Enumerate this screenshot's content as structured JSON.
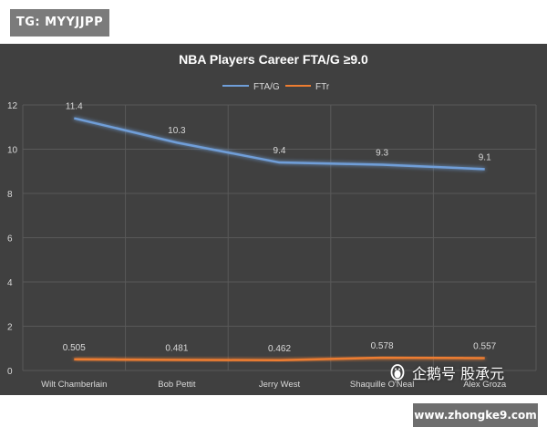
{
  "header_badge": "TG: MYYJJPP",
  "watermark_text": "企鹅号 股承元",
  "watermark_icon": "penguin-icon",
  "site_label": "www.zhongke9.com",
  "colors": {
    "panel_bg": "#404040",
    "grid": "#595959",
    "fta_line": "#6f9ed8",
    "ftr_line": "#ed7d31",
    "text": "#d9d9d9"
  },
  "chart_data": {
    "type": "line",
    "title": "NBA Players Career FTA/G ≥9.0",
    "categories": [
      "Wilt Chamberlain",
      "Bob Pettit",
      "Jerry West",
      "Shaquille O'Neal",
      "Alex Groza"
    ],
    "series": [
      {
        "name": "FTA/G",
        "values": [
          11.4,
          10.3,
          9.4,
          9.3,
          9.1
        ],
        "labels": [
          "11.4",
          "10.3",
          "9.4",
          "9.3",
          "9.1"
        ]
      },
      {
        "name": "FTr",
        "values": [
          0.505,
          0.481,
          0.462,
          0.578,
          0.557
        ],
        "labels": [
          "0.505",
          "0.481",
          "0.462",
          "0.578",
          "0.557"
        ]
      }
    ],
    "yticks": [
      "0",
      "2",
      "4",
      "6",
      "8",
      "10",
      "12"
    ],
    "ylim": [
      0,
      12
    ],
    "grid": true,
    "legend": "top-center"
  }
}
